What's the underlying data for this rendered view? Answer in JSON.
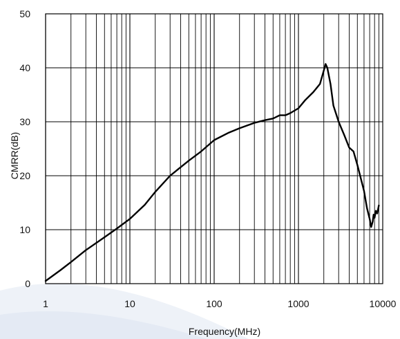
{
  "chart_data": {
    "type": "line",
    "title": "",
    "xlabel": "Frequency(MHz)",
    "ylabel": "CMRR(dB)",
    "xscale": "log",
    "xlim": [
      1,
      10000
    ],
    "ylim": [
      0,
      50
    ],
    "grid": true,
    "x_ticks": [
      "1",
      "10",
      "100",
      "1000",
      "10000"
    ],
    "y_ticks": [
      "0",
      "10",
      "20",
      "30",
      "40",
      "50"
    ],
    "series": [
      {
        "color": "#000000",
        "x": [
          1,
          1.5,
          2,
          3,
          5,
          7,
          10,
          15,
          20,
          30,
          50,
          70,
          100,
          150,
          200,
          300,
          400,
          500,
          600,
          700,
          800,
          1000,
          1200,
          1500,
          1800,
          2000,
          2100,
          2200,
          2400,
          2600,
          3000,
          3500,
          4000,
          4500,
          5000,
          5500,
          6000,
          6500,
          7000,
          7300,
          7600,
          7800,
          8000,
          8300,
          8600,
          9000
        ],
        "y": [
          0.5,
          2.5,
          4.0,
          6.2,
          8.6,
          10.2,
          12.0,
          14.6,
          17.0,
          20.0,
          22.8,
          24.5,
          26.6,
          28.0,
          28.8,
          29.8,
          30.3,
          30.6,
          31.2,
          31.2,
          31.6,
          32.5,
          34.0,
          35.5,
          37.0,
          39.5,
          40.7,
          40.0,
          37.0,
          33.0,
          30.0,
          27.5,
          25.2,
          24.5,
          22.0,
          19.5,
          17.2,
          14.0,
          12.0,
          10.5,
          11.5,
          12.8,
          12.2,
          13.5,
          13.0,
          14.5
        ]
      }
    ]
  }
}
